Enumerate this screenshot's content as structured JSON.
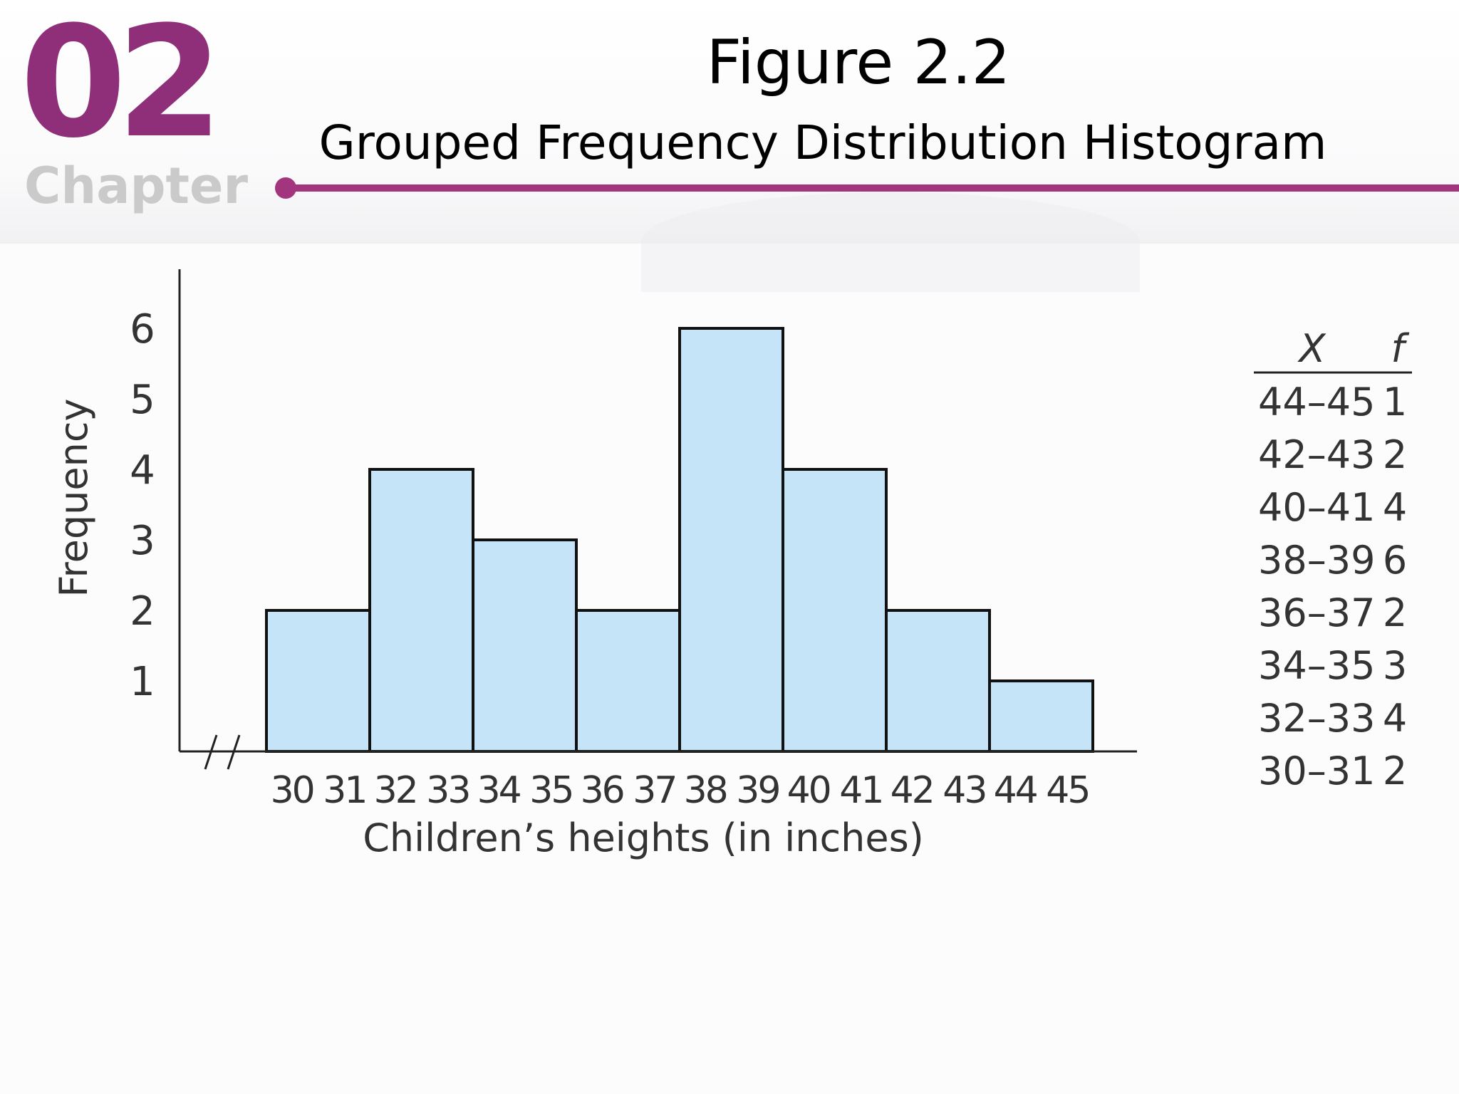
{
  "header": {
    "chapter_number": "02",
    "chapter_word": "Chapter",
    "title": "Figure 2.2",
    "subtitle": "Grouped Frequency Distribution Histogram"
  },
  "colors": {
    "brand": "#a3357f",
    "bar_fill": "#c6e4f8",
    "bar_stroke": "#111111"
  },
  "chart_data": {
    "type": "bar",
    "title": "",
    "xlabel": "Children’s heights (in inches)",
    "ylabel": "Frequency",
    "categories": [
      "30 31",
      "32 33",
      "34 35",
      "36 37",
      "38 39",
      "40 41",
      "42 43",
      "44 45"
    ],
    "values": [
      2,
      4,
      3,
      2,
      6,
      4,
      2,
      1
    ],
    "yticks": [
      1,
      2,
      3,
      4,
      5,
      6
    ],
    "ylim": [
      0,
      6.5
    ],
    "axis_break": true,
    "grid": false,
    "legend": "none"
  },
  "frequency_table": {
    "headers": {
      "x": "X",
      "f": "f"
    },
    "rows": [
      {
        "x": "44–45",
        "f": "1"
      },
      {
        "x": "42–43",
        "f": "2"
      },
      {
        "x": "40–41",
        "f": "4"
      },
      {
        "x": "38–39",
        "f": "6"
      },
      {
        "x": "36–37",
        "f": "2"
      },
      {
        "x": "34–35",
        "f": "3"
      },
      {
        "x": "32–33",
        "f": "4"
      },
      {
        "x": "30–31",
        "f": "2"
      }
    ]
  }
}
